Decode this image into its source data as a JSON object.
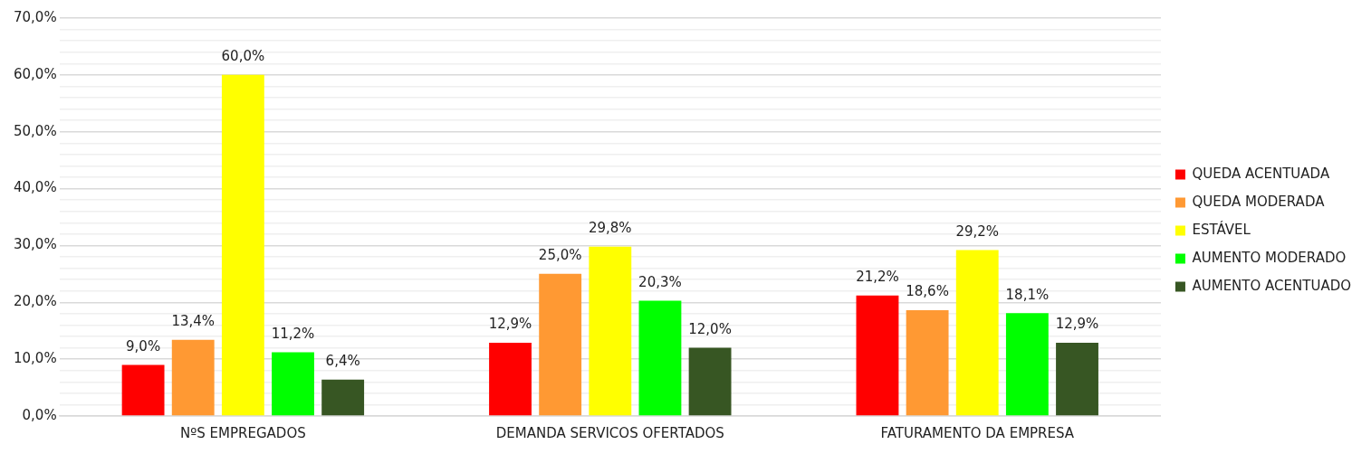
{
  "chart_data": {
    "type": "bar",
    "categories": [
      "NºS EMPREGADOS",
      "DEMANDA SERVICOS OFERTADOS",
      "FATURAMENTO DA EMPRESA"
    ],
    "series": [
      {
        "name": "QUEDA ACENTUADA",
        "color": "#ff0000",
        "values": [
          9.0,
          12.9,
          21.2
        ],
        "value_labels": [
          "9,0%",
          "12,9%",
          "21,2%"
        ]
      },
      {
        "name": "QUEDA MODERADA",
        "color": "#ff9933",
        "values": [
          13.4,
          25.0,
          18.6
        ],
        "value_labels": [
          "13,4%",
          "25,0%",
          "18,6%"
        ]
      },
      {
        "name": "ESTÁVEL",
        "color": "#ffff00",
        "values": [
          60.0,
          29.8,
          29.2
        ],
        "value_labels": [
          "60,0%",
          "29,8%",
          "29,2%"
        ]
      },
      {
        "name": "AUMENTO MODERADO",
        "color": "#00ff00",
        "values": [
          11.2,
          20.3,
          18.1
        ],
        "value_labels": [
          "11,2%",
          "20,3%",
          "18,1%"
        ]
      },
      {
        "name": "AUMENTO ACENTUADO",
        "color": "#375623",
        "values": [
          6.4,
          12.0,
          12.9
        ],
        "value_labels": [
          "6,4%",
          "12,0%",
          "12,9%"
        ]
      }
    ],
    "ylim": [
      0,
      70
    ],
    "yticks": [
      {
        "value": 0,
        "label": "0,0%"
      },
      {
        "value": 2,
        "label": null
      },
      {
        "value": 4,
        "label": null
      },
      {
        "value": 6,
        "label": null
      },
      {
        "value": 8,
        "label": null
      },
      {
        "value": 10,
        "label": "10,0%"
      },
      {
        "value": 12,
        "label": null
      },
      {
        "value": 14,
        "label": null
      },
      {
        "value": 16,
        "label": null
      },
      {
        "value": 18,
        "label": null
      },
      {
        "value": 20,
        "label": "20,0%"
      },
      {
        "value": 22,
        "label": null
      },
      {
        "value": 24,
        "label": null
      },
      {
        "value": 26,
        "label": null
      },
      {
        "value": 28,
        "label": null
      },
      {
        "value": 30,
        "label": "30,0%"
      },
      {
        "value": 32,
        "label": null
      },
      {
        "value": 34,
        "label": null
      },
      {
        "value": 36,
        "label": null
      },
      {
        "value": 38,
        "label": null
      },
      {
        "value": 40,
        "label": "40,0%"
      },
      {
        "value": 42,
        "label": null
      },
      {
        "value": 44,
        "label": null
      },
      {
        "value": 46,
        "label": null
      },
      {
        "value": 48,
        "label": null
      },
      {
        "value": 50,
        "label": "50,0%"
      },
      {
        "value": 52,
        "label": null
      },
      {
        "value": 54,
        "label": null
      },
      {
        "value": 56,
        "label": null
      },
      {
        "value": 58,
        "label": null
      },
      {
        "value": 60,
        "label": "60,0%"
      },
      {
        "value": 62,
        "label": null
      },
      {
        "value": 64,
        "label": null
      },
      {
        "value": 66,
        "label": null
      },
      {
        "value": 68,
        "label": null
      },
      {
        "value": 70,
        "label": "70,0%"
      }
    ],
    "grid": "y",
    "legend": "right"
  }
}
